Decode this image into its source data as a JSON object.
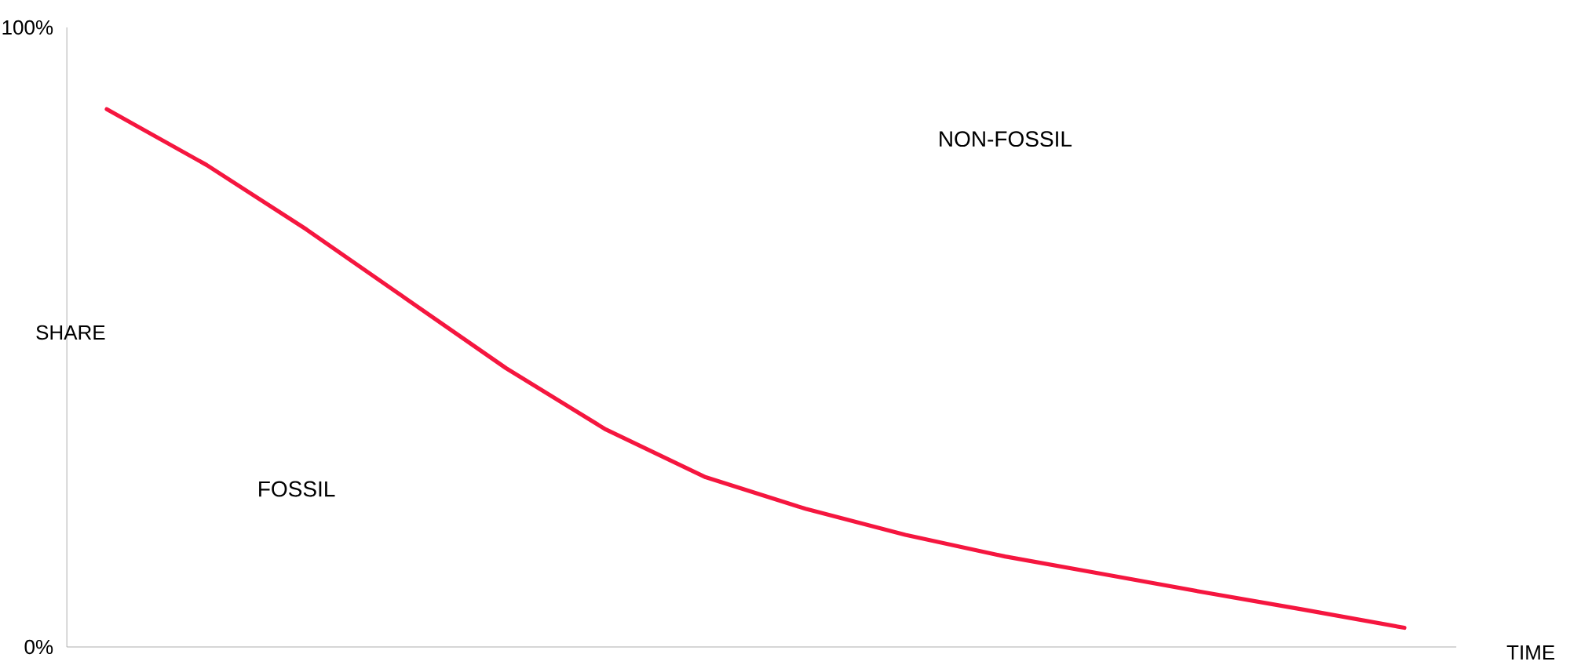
{
  "chart_data": {
    "type": "line",
    "xlabel": "TIME",
    "ylabel": "SHARE",
    "categories": [
      null,
      null,
      null,
      null,
      null,
      null,
      null,
      null,
      null,
      null,
      null,
      null,
      null,
      null
    ],
    "series": [
      {
        "color": "#f5163f",
        "values": [
          86.8,
          77.8,
          67.4,
          56.2,
          45.0,
          35.1,
          27.4,
          22.3,
          18.1,
          14.6,
          11.7,
          8.8,
          6.0,
          3.1
        ]
      }
    ],
    "ylim": [
      0,
      100
    ],
    "yticks": [
      {
        "value": 0,
        "label": "0%"
      },
      {
        "value": 100,
        "label": "100%"
      }
    ],
    "annotations": [
      "NON-FOSSIL",
      "FOSSIL"
    ],
    "grid": false,
    "marker": "none",
    "line_style": "solid"
  }
}
